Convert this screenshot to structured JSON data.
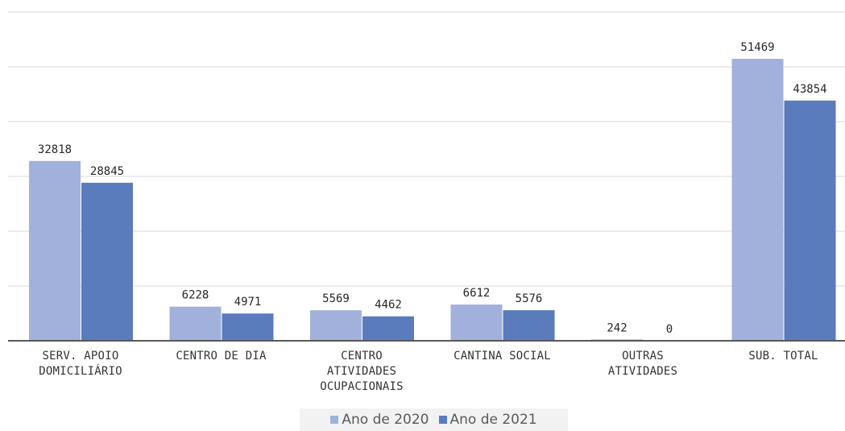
{
  "chart_data": {
    "type": "bar",
    "categories": [
      "SERV. APOIO\nDOMICILIÁRIO",
      "CENTRO DE DIA",
      "CENTRO\nATIVIDADES\nOCUPACIONAIS",
      "CANTINA SOCIAL",
      "OUTRAS\nATIVIDADES",
      "SUB. TOTAL"
    ],
    "series": [
      {
        "name": "Ano de 2020",
        "values": [
          32818,
          6228,
          5569,
          6612,
          242,
          51469
        ],
        "color": "#a1b1dc"
      },
      {
        "name": "Ano de 2021",
        "values": [
          28845,
          4971,
          4462,
          5576,
          0,
          43854
        ],
        "color": "#5a7bbc"
      }
    ],
    "ylim": [
      0,
      60000
    ],
    "yticks": [
      0,
      10000,
      20000,
      30000,
      40000,
      50000,
      60000
    ],
    "grid": true,
    "y_tick_labels_visible": false,
    "legend_position": "bottom"
  }
}
